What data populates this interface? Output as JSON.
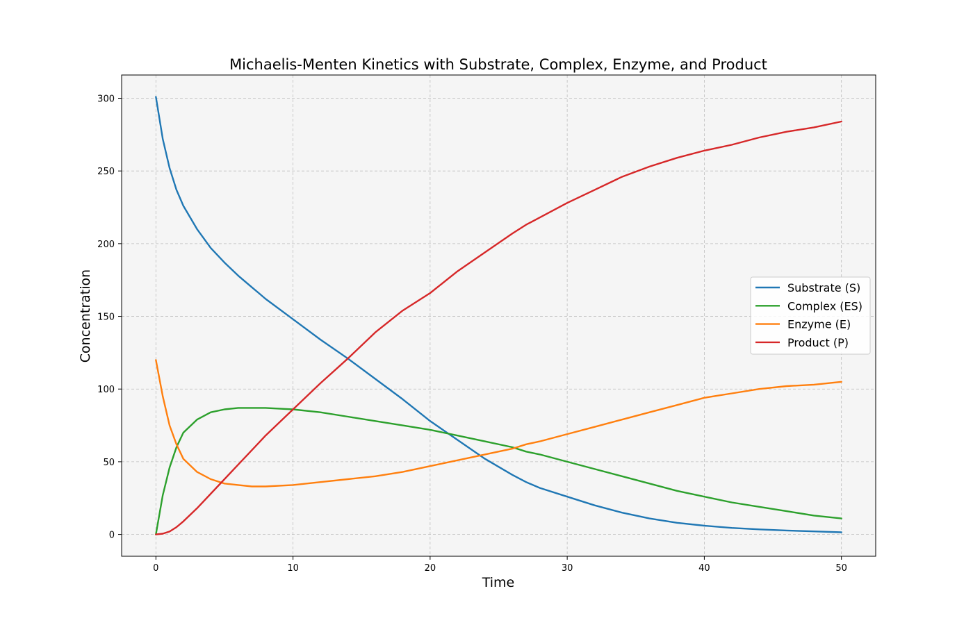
{
  "chart_data": {
    "type": "line",
    "title": "Michaelis-Menten Kinetics with Substrate, Complex, Enzyme, and Product",
    "xlabel": "Time",
    "ylabel": "Concentration",
    "xlim": [
      -2.5,
      52.5
    ],
    "ylim": [
      -15,
      316
    ],
    "xticks": [
      0,
      10,
      20,
      30,
      40,
      50
    ],
    "yticks": [
      0,
      50,
      100,
      150,
      200,
      250,
      300
    ],
    "grid": true,
    "legend_position": "center-right",
    "x": [
      0,
      0.5,
      1,
      1.5,
      2,
      3,
      4,
      5,
      6,
      7,
      7.5,
      8,
      10,
      12,
      14,
      16,
      18,
      20,
      22,
      24,
      26,
      27,
      28,
      30,
      32,
      34,
      36,
      38,
      40,
      42,
      44,
      46,
      48,
      50
    ],
    "series": [
      {
        "name": "Substrate (S)",
        "color": "#1f77b4",
        "values": [
          301,
          272,
          252,
          237,
          226,
          210,
          197,
          187,
          178,
          170,
          166,
          162,
          148,
          134,
          121,
          107,
          93,
          78,
          65,
          52,
          41,
          36,
          32,
          26,
          20,
          15,
          11,
          8,
          6,
          4.5,
          3.5,
          2.7,
          2.1,
          1.5
        ]
      },
      {
        "name": "Complex (ES)",
        "color": "#2ca02c",
        "values": [
          0,
          27,
          46,
          60,
          70,
          79,
          84,
          86,
          87,
          87,
          87,
          87,
          86,
          84,
          81,
          78,
          75,
          72,
          68,
          64,
          60,
          57,
          55,
          50,
          45,
          40,
          35,
          30,
          26,
          22,
          19,
          16,
          13,
          11
        ]
      },
      {
        "name": "Enzyme (E)",
        "color": "#ff7f0e",
        "values": [
          120,
          95,
          75,
          62,
          52,
          43,
          38,
          35,
          34,
          33,
          33,
          33,
          34,
          36,
          38,
          40,
          43,
          47,
          51,
          55,
          59,
          62,
          64,
          69,
          74,
          79,
          84,
          89,
          94,
          97,
          100,
          102,
          103,
          105
        ]
      },
      {
        "name": "Product (P)",
        "color": "#d62728",
        "values": [
          0,
          0.5,
          2,
          5,
          9,
          18,
          28,
          38,
          48,
          58,
          63,
          68,
          86,
          104,
          121,
          139,
          154,
          166,
          181,
          194,
          207,
          213,
          218,
          228,
          237,
          246,
          253,
          259,
          264,
          268,
          273,
          277,
          280,
          284
        ]
      }
    ]
  }
}
